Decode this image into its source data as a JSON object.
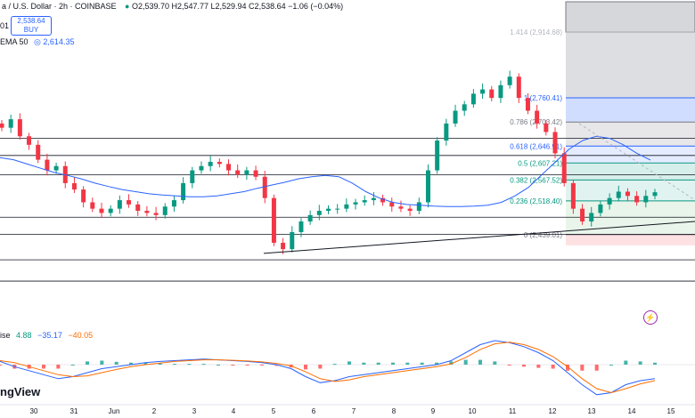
{
  "header": {
    "symbol_line": "a / U.S. Dollar · 2h · COINBASE",
    "ohlc": "O2,539.70  H2,547.77  L2,529.94  C2,538.64  −1.06 (−0.04%)",
    "buy_price": "2,538.64",
    "buy_label": "BUY",
    "left_stub": "01",
    "ema_label": "EMA 50",
    "ema_value": "2,614.35"
  },
  "macd_header": {
    "prefix": "ise",
    "v1": "4.88",
    "v2": "−35.17",
    "v3": "−40.05"
  },
  "watermark": "ngView",
  "colors": {
    "up": "#089981",
    "down": "#f23645",
    "ema": "#2962ff",
    "macd_line": "#2962ff",
    "signal_line": "#ff6d00"
  },
  "chart_data": {
    "type": "candlestick",
    "y_scale": [
      2280,
      2990
    ],
    "x_labels": [
      "30",
      "31",
      "Jun",
      "2",
      "3",
      "4",
      "5",
      "6",
      "7",
      "8",
      "9",
      "10",
      "11",
      "12",
      "13",
      "14",
      "15"
    ],
    "horizontal_levels": [
      2665,
      2625,
      2580,
      2480,
      2440,
      2380,
      2330
    ],
    "fib_levels": [
      {
        "ratio": "1.414",
        "price": "2,914.68",
        "value": 2914.68
      },
      {
        "ratio": "1",
        "price": "2,760.41",
        "value": 2760.41
      },
      {
        "ratio": "0.786",
        "price": "2,703.42",
        "value": 2703.42
      },
      {
        "ratio": "0.618",
        "price": "2,646.91",
        "value": 2646.91
      },
      {
        "ratio": "0.5",
        "price": "2,607.21",
        "value": 2607.21
      },
      {
        "ratio": "0.382",
        "price": "2,567.52",
        "value": 2567.52
      },
      {
        "ratio": "0.236",
        "price": "2,518.40",
        "value": 2518.4
      },
      {
        "ratio": "0",
        "price": "2,439.01",
        "value": 2439.01
      }
    ],
    "close_series": [
      2690,
      2710,
      2670,
      2650,
      2615,
      2590,
      2600,
      2560,
      2545,
      2515,
      2500,
      2490,
      2500,
      2520,
      2510,
      2495,
      2490,
      2485,
      2505,
      2520,
      2560,
      2590,
      2600,
      2610,
      2605,
      2590,
      2580,
      2590,
      2575,
      2525,
      2420,
      2405,
      2445,
      2470,
      2485,
      2495,
      2500,
      2500,
      2510,
      2515,
      2520,
      2525,
      2515,
      2505,
      2500,
      2495,
      2515,
      2590,
      2660,
      2700,
      2730,
      2745,
      2770,
      2780,
      2760,
      2790,
      2810,
      2760,
      2730,
      2700,
      2680,
      2630,
      2560,
      2500,
      2470,
      2490,
      2510,
      2525,
      2540,
      2530,
      2515,
      2530,
      2538.64
    ],
    "ema50_series": [
      2620,
      2615,
      2605,
      2595,
      2585,
      2578,
      2570,
      2560,
      2552,
      2545,
      2540,
      2535,
      2532,
      2530,
      2528,
      2528,
      2530,
      2535,
      2540,
      2548,
      2555,
      2562,
      2570,
      2575,
      2578,
      2575,
      2560,
      2540,
      2525,
      2515,
      2510,
      2508,
      2506,
      2505,
      2505,
      2506,
      2508,
      2515,
      2530,
      2550,
      2580,
      2610,
      2640,
      2660,
      2670,
      2665,
      2650,
      2630,
      2614.35
    ],
    "macd_series": [
      8,
      -5,
      -15,
      -25,
      -35,
      -30,
      -20,
      -10,
      -5,
      0,
      5,
      8,
      10,
      12,
      14,
      12,
      10,
      8,
      5,
      0,
      -10,
      -30,
      -45,
      -40,
      -30,
      -25,
      -20,
      -15,
      -10,
      -5,
      0,
      10,
      30,
      50,
      60,
      55,
      45,
      30,
      10,
      -20,
      -50,
      -75,
      -70,
      -50,
      -40,
      -35.17
    ],
    "signal_series": [
      10,
      5,
      -5,
      -15,
      -25,
      -30,
      -28,
      -20,
      -12,
      -5,
      0,
      4,
      8,
      10,
      12,
      12,
      11,
      9,
      7,
      3,
      -3,
      -18,
      -35,
      -42,
      -38,
      -30,
      -25,
      -20,
      -15,
      -10,
      -5,
      2,
      18,
      38,
      52,
      56,
      50,
      38,
      20,
      -5,
      -35,
      -60,
      -70,
      -60,
      -48,
      -40.05
    ]
  }
}
